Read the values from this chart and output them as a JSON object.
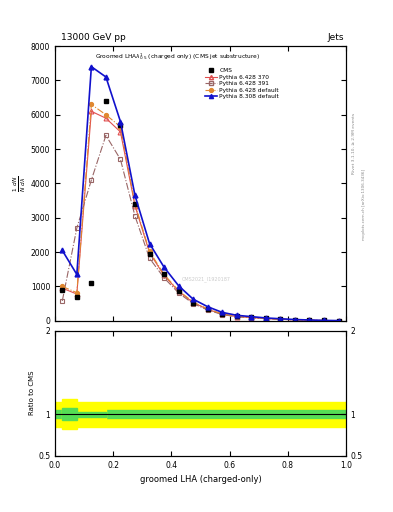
{
  "title_top": "13000 GeV pp",
  "title_right": "Jets",
  "plot_title": "Groomed LHA$\\lambda^{1}_{0.5}$ (charged only) (CMS jet substructure)",
  "xlabel": "groomed LHA (charged-only)",
  "ylabel_ratio": "Ratio to CMS",
  "right_label_top": "Rivet 3.1.10, ≥ 2.9M events",
  "right_label_bottom": "mcplots.cern.ch [arXiv:1306.3436]",
  "watermark": "CMS2021_I1920187",
  "cms_x": [
    0.025,
    0.075,
    0.125,
    0.175,
    0.225,
    0.275,
    0.325,
    0.375,
    0.425,
    0.475,
    0.525,
    0.575,
    0.625,
    0.675,
    0.725,
    0.775,
    0.825,
    0.875,
    0.925,
    0.975
  ],
  "cms_y": [
    900,
    700,
    1100,
    6400,
    5700,
    3400,
    1950,
    1350,
    870,
    530,
    340,
    195,
    128,
    98,
    68,
    49,
    29,
    19,
    10,
    5
  ],
  "p6_370_x": [
    0.025,
    0.075,
    0.125,
    0.175,
    0.225,
    0.275,
    0.325,
    0.375,
    0.425,
    0.475,
    0.525,
    0.575,
    0.625,
    0.675,
    0.725,
    0.775,
    0.825,
    0.875,
    0.925,
    0.975
  ],
  "p6_370_y": [
    950,
    780,
    6100,
    5900,
    5500,
    3350,
    1980,
    1320,
    860,
    530,
    335,
    192,
    123,
    93,
    64,
    47,
    27,
    17,
    9,
    4
  ],
  "p6_391_x": [
    0.025,
    0.075,
    0.125,
    0.175,
    0.225,
    0.275,
    0.325,
    0.375,
    0.425,
    0.475,
    0.525,
    0.575,
    0.625,
    0.675,
    0.725,
    0.775,
    0.825,
    0.875,
    0.925,
    0.975
  ],
  "p6_391_y": [
    580,
    2700,
    4100,
    5400,
    4700,
    3050,
    1820,
    1250,
    810,
    500,
    315,
    182,
    118,
    88,
    61,
    44,
    26,
    16,
    8,
    4
  ],
  "p6_def_x": [
    0.025,
    0.075,
    0.125,
    0.175,
    0.225,
    0.275,
    0.325,
    0.375,
    0.425,
    0.475,
    0.525,
    0.575,
    0.625,
    0.675,
    0.725,
    0.775,
    0.825,
    0.875,
    0.925,
    0.975
  ],
  "p6_def_y": [
    1000,
    820,
    6300,
    6000,
    5650,
    3400,
    2020,
    1350,
    880,
    545,
    348,
    200,
    128,
    98,
    67,
    49,
    29,
    18,
    10,
    5
  ],
  "p8_def_x": [
    0.025,
    0.075,
    0.125,
    0.175,
    0.225,
    0.275,
    0.325,
    0.375,
    0.425,
    0.475,
    0.525,
    0.575,
    0.625,
    0.675,
    0.725,
    0.775,
    0.825,
    0.875,
    0.925,
    0.975
  ],
  "p8_def_y": [
    2050,
    1350,
    7400,
    7100,
    5800,
    3650,
    2250,
    1560,
    1020,
    630,
    410,
    245,
    160,
    122,
    83,
    60,
    37,
    24,
    12,
    6
  ],
  "color_p6_370": "#e05050",
  "color_p6_391": "#996666",
  "color_p6_def": "#e08830",
  "color_p8_def": "#1111cc",
  "ylim_main": [
    0,
    8000
  ],
  "ylim_ratio": [
    0.5,
    2.0
  ],
  "xlim": [
    0.0,
    1.0
  ],
  "yticks_main": [
    0,
    1000,
    2000,
    3000,
    4000,
    5000,
    6000,
    7000,
    8000
  ],
  "yticks_ratio": [
    0.5,
    1.0,
    2.0
  ],
  "background_color": "#ffffff"
}
